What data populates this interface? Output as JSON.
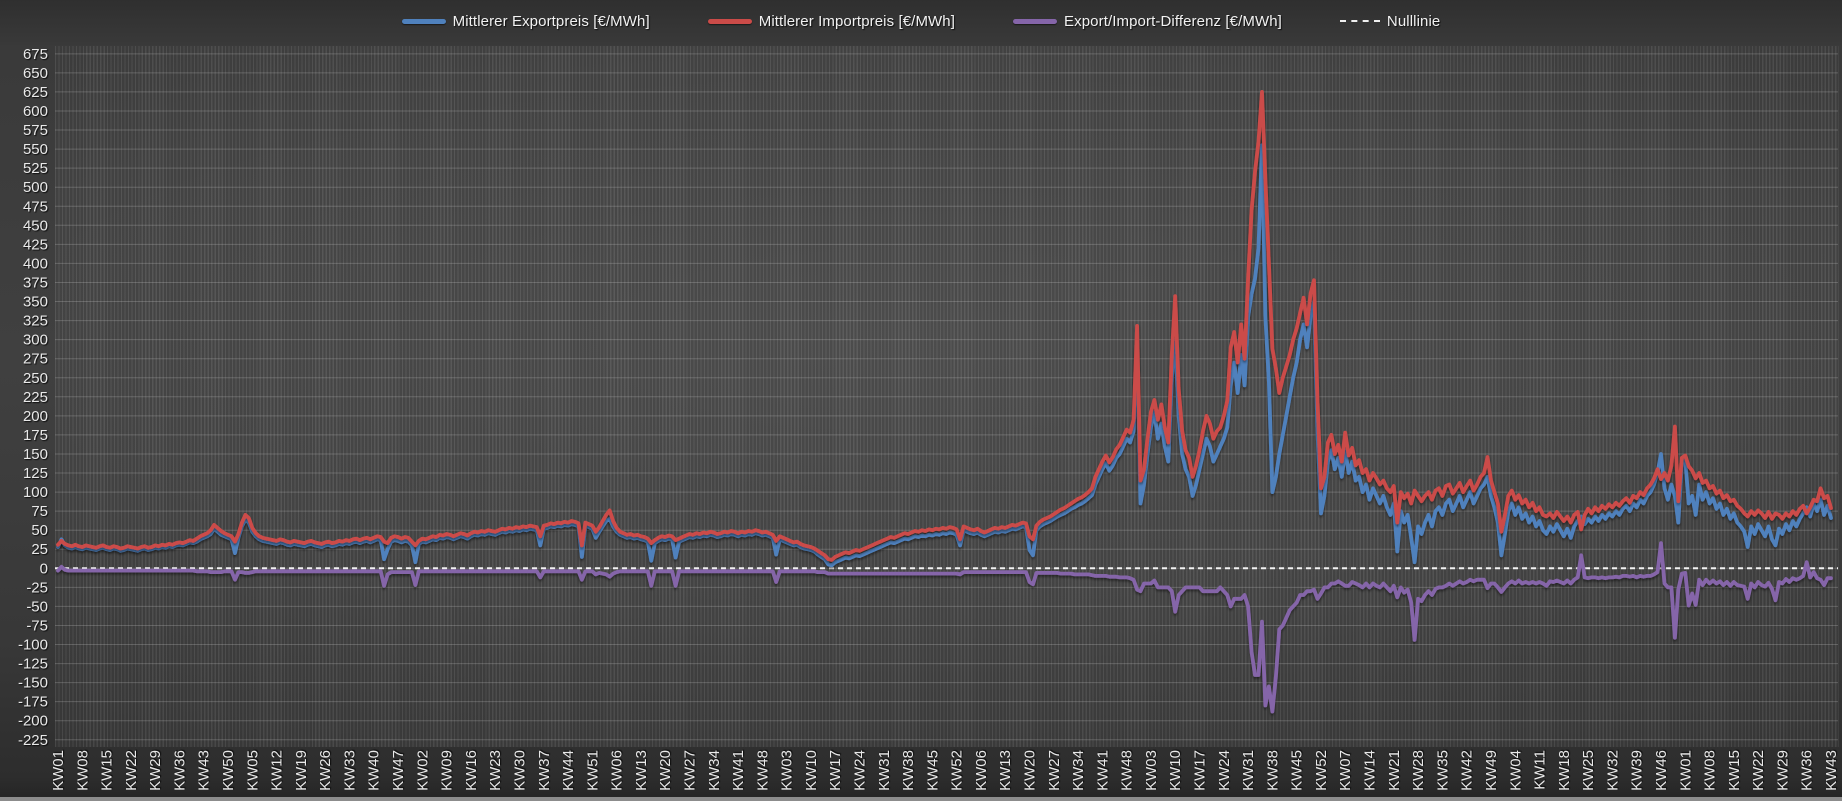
{
  "legend": {
    "null_label": "Nulllinie"
  },
  "chart_data": {
    "type": "line",
    "title": "",
    "xlabel": "",
    "ylabel": "",
    "y_axis": {
      "min": -225,
      "max": 675,
      "step": 25
    },
    "x_tick_every_n_points": 7,
    "n_points": 512,
    "grid": "on",
    "legend_position": "top",
    "x_tick_labels": [
      "KW01",
      "KW08",
      "KW15",
      "KW22",
      "KW29",
      "KW36",
      "KW43",
      "KW50",
      "KW05",
      "KW12",
      "KW19",
      "KW26",
      "KW33",
      "KW40",
      "KW47",
      "KW02",
      "KW09",
      "KW16",
      "KW23",
      "KW30",
      "KW37",
      "KW44",
      "KW51",
      "KW06",
      "KW13",
      "KW20",
      "KW27",
      "KW34",
      "KW41",
      "KW48",
      "KW03",
      "KW10",
      "KW17",
      "KW24",
      "KW31",
      "KW38",
      "KW45",
      "KW52",
      "KW06",
      "KW13",
      "KW20",
      "KW27",
      "KW34",
      "KW41",
      "KW48",
      "KW03",
      "KW10",
      "KW17",
      "KW24",
      "KW31",
      "KW38",
      "KW45",
      "KW52",
      "KW07",
      "KW14",
      "KW21",
      "KW28",
      "KW35",
      "KW42",
      "KW49",
      "KW04",
      "KW11",
      "KW18",
      "KW25",
      "KW32",
      "KW39",
      "KW46",
      "KW01",
      "KW08",
      "KW15",
      "KW22",
      "KW29",
      "KW36",
      "KW43"
    ],
    "series": [
      {
        "name": "Mittlerer Exportpreis [€/MWh]",
        "color": "#4f81bd",
        "values": [
          28,
          38,
          30,
          27,
          26,
          28,
          26,
          25,
          27,
          26,
          25,
          24,
          26,
          27,
          25,
          24,
          26,
          25,
          23,
          24,
          26,
          25,
          24,
          23,
          25,
          26,
          24,
          25,
          27,
          26,
          28,
          27,
          29,
          28,
          30,
          31,
          30,
          32,
          34,
          33,
          35,
          38,
          40,
          42,
          45,
          52,
          48,
          44,
          42,
          40,
          38,
          20,
          40,
          55,
          64,
          60,
          48,
          42,
          38,
          36,
          35,
          34,
          33,
          32,
          34,
          33,
          31,
          30,
          32,
          31,
          30,
          29,
          31,
          32,
          30,
          29,
          28,
          30,
          31,
          29,
          30,
          32,
          31,
          33,
          32,
          34,
          35,
          33,
          35,
          36,
          34,
          36,
          38,
          37,
          12,
          25,
          35,
          37,
          36,
          34,
          36,
          35,
          30,
          8,
          32,
          35,
          34,
          36,
          38,
          37,
          40,
          39,
          41,
          40,
          38,
          40,
          42,
          41,
          39,
          42,
          44,
          43,
          45,
          44,
          46,
          45,
          44,
          46,
          48,
          47,
          49,
          48,
          50,
          49,
          51,
          50,
          52,
          51,
          50,
          30,
          52,
          53,
          55,
          54,
          56,
          55,
          57,
          56,
          58,
          57,
          55,
          15,
          56,
          54,
          52,
          40,
          48,
          55,
          62,
          65,
          55,
          48,
          44,
          42,
          40,
          41,
          39,
          40,
          38,
          37,
          35,
          10,
          33,
          36,
          38,
          37,
          39,
          38,
          14,
          35,
          37,
          39,
          41,
          40,
          42,
          41,
          43,
          42,
          44,
          43,
          41,
          42,
          44,
          43,
          45,
          44,
          42,
          44,
          43,
          45,
          44,
          46,
          45,
          43,
          44,
          42,
          40,
          18,
          38,
          36,
          34,
          32,
          30,
          31,
          28,
          26,
          25,
          24,
          22,
          18,
          15,
          12,
          5,
          4,
          8,
          10,
          12,
          14,
          13,
          15,
          17,
          16,
          18,
          20,
          22,
          24,
          26,
          28,
          30,
          32,
          34,
          33,
          35,
          37,
          39,
          38,
          40,
          42,
          41,
          43,
          42,
          44,
          43,
          45,
          44,
          46,
          45,
          47,
          46,
          44,
          30,
          50,
          48,
          46,
          45,
          47,
          44,
          42,
          44,
          46,
          48,
          47,
          49,
          48,
          50,
          52,
          51,
          53,
          55,
          54,
          24,
          17,
          50,
          55,
          58,
          60,
          62,
          65,
          68,
          70,
          72,
          75,
          78,
          80,
          83,
          85,
          88,
          92,
          96,
          110,
          120,
          130,
          138,
          128,
          135,
          145,
          150,
          160,
          170,
          165,
          180,
          290,
          85,
          110,
          150,
          185,
          205,
          170,
          190,
          160,
          140,
          250,
          300,
          200,
          150,
          130,
          120,
          95,
          110,
          130,
          150,
          170,
          160,
          140,
          150,
          160,
          170,
          185,
          240,
          270,
          230,
          280,
          240,
          330,
          360,
          380,
          420,
          555,
          330,
          245,
          100,
          120,
          150,
          175,
          200,
          225,
          250,
          270,
          300,
          320,
          290,
          330,
          350,
          180,
          72,
          95,
          140,
          155,
          130,
          145,
          120,
          155,
          125,
          140,
          115,
          120,
          100,
          110,
          90,
          105,
          95,
          85,
          95,
          80,
          70,
          85,
          22,
          75,
          60,
          70,
          40,
          8,
          55,
          45,
          60,
          70,
          55,
          75,
          80,
          70,
          85,
          90,
          75,
          85,
          95,
          80,
          90,
          100,
          85,
          95,
          105,
          110,
          120,
          95,
          80,
          60,
          17,
          45,
          75,
          85,
          70,
          80,
          65,
          72,
          60,
          68,
          55,
          62,
          50,
          45,
          55,
          48,
          58,
          50,
          42,
          52,
          40,
          55,
          62,
          68,
          58,
          65,
          60,
          68,
          62,
          70,
          65,
          72,
          68,
          75,
          70,
          78,
          82,
          75,
          85,
          80,
          90,
          85,
          95,
          100,
          110,
          125,
          150,
          105,
          90,
          110,
          95,
          60,
          138,
          142,
          85,
          95,
          70,
          110,
          90,
          100,
          85,
          92,
          78,
          85,
          70,
          78,
          65,
          72,
          60,
          55,
          48,
          28,
          55,
          45,
          58,
          50,
          42,
          55,
          38,
          30,
          52,
          45,
          58,
          50,
          62,
          55,
          65,
          72,
          80,
          68,
          85,
          75,
          90,
          70,
          82,
          66
        ]
      },
      {
        "name": "Mittlerer Importpreis [€/MWh]",
        "color": "#cb4b48",
        "values": [
          31,
          36,
          32,
          30,
          29,
          31,
          29,
          28,
          30,
          29,
          28,
          27,
          29,
          30,
          28,
          27,
          29,
          28,
          26,
          27,
          29,
          28,
          27,
          26,
          28,
          29,
          27,
          28,
          30,
          29,
          31,
          30,
          32,
          31,
          33,
          34,
          33,
          35,
          37,
          36,
          39,
          42,
          44,
          46,
          50,
          57,
          53,
          49,
          46,
          44,
          42,
          35,
          45,
          60,
          70,
          66,
          53,
          46,
          42,
          40,
          39,
          38,
          37,
          36,
          38,
          37,
          35,
          34,
          36,
          35,
          34,
          33,
          35,
          36,
          34,
          33,
          32,
          34,
          35,
          33,
          34,
          36,
          35,
          37,
          36,
          38,
          39,
          37,
          39,
          40,
          38,
          40,
          42,
          41,
          35,
          33,
          40,
          42,
          41,
          39,
          41,
          40,
          35,
          30,
          36,
          39,
          38,
          40,
          42,
          41,
          44,
          43,
          45,
          44,
          42,
          44,
          46,
          45,
          43,
          46,
          48,
          47,
          49,
          48,
          50,
          49,
          48,
          50,
          52,
          51,
          53,
          52,
          54,
          53,
          55,
          54,
          56,
          55,
          54,
          42,
          56,
          57,
          59,
          58,
          60,
          59,
          61,
          60,
          62,
          61,
          59,
          30,
          60,
          58,
          56,
          48,
          54,
          62,
          70,
          76,
          62,
          53,
          48,
          46,
          44,
          45,
          43,
          44,
          42,
          41,
          39,
          33,
          37,
          40,
          42,
          41,
          43,
          42,
          37,
          39,
          41,
          43,
          45,
          44,
          46,
          45,
          47,
          46,
          48,
          47,
          45,
          46,
          48,
          47,
          49,
          48,
          46,
          48,
          47,
          49,
          48,
          50,
          49,
          47,
          48,
          46,
          44,
          36,
          42,
          40,
          38,
          36,
          34,
          35,
          32,
          30,
          29,
          28,
          26,
          23,
          20,
          17,
          12,
          11,
          15,
          17,
          19,
          21,
          20,
          22,
          24,
          23,
          25,
          27,
          29,
          31,
          33,
          35,
          37,
          39,
          41,
          40,
          42,
          44,
          46,
          45,
          47,
          49,
          48,
          50,
          49,
          51,
          50,
          52,
          51,
          53,
          52,
          54,
          53,
          51,
          38,
          55,
          53,
          51,
          50,
          52,
          49,
          47,
          49,
          51,
          53,
          52,
          54,
          53,
          55,
          57,
          56,
          58,
          60,
          59,
          42,
          38,
          56,
          61,
          64,
          66,
          68,
          71,
          74,
          77,
          79,
          82,
          85,
          88,
          91,
          93,
          96,
          100,
          105,
          120,
          130,
          140,
          148,
          139,
          146,
          156,
          162,
          172,
          182,
          178,
          195,
          318,
          115,
          130,
          170,
          205,
          221,
          195,
          215,
          185,
          165,
          280,
          357,
          235,
          180,
          155,
          145,
          120,
          135,
          155,
          180,
          200,
          190,
          170,
          180,
          185,
          200,
          220,
          290,
          310,
          270,
          320,
          275,
          380,
          470,
          520,
          560,
          625,
          510,
          400,
          288,
          262,
          230,
          250,
          265,
          280,
          300,
          315,
          335,
          355,
          320,
          360,
          378,
          220,
          105,
          120,
          165,
          175,
          150,
          162,
          140,
          178,
          148,
          158,
          135,
          142,
          125,
          130,
          115,
          125,
          118,
          110,
          115,
          105,
          100,
          108,
          60,
          100,
          92,
          98,
          85,
          102,
          95,
          88,
          95,
          100,
          90,
          102,
          105,
          95,
          108,
          110,
          98,
          105,
          112,
          100,
          108,
          115,
          102,
          110,
          120,
          125,
          146,
          115,
          100,
          85,
          48,
          70,
          95,
          102,
          90,
          96,
          85,
          90,
          80,
          86,
          75,
          80,
          70,
          68,
          72,
          66,
          74,
          68,
          62,
          68,
          60,
          70,
          74,
          51,
          70,
          78,
          72,
          80,
          75,
          82,
          78,
          84,
          80,
          86,
          82,
          88,
          92,
          86,
          95,
          92,
          100,
          96,
          105,
          110,
          118,
          130,
          117,
          125,
          115,
          135,
          186,
          88,
          145,
          148,
          134,
          128,
          118,
          125,
          112,
          115,
          105,
          108,
          98,
          102,
          92,
          96,
          88,
          90,
          82,
          78,
          72,
          68,
          75,
          70,
          76,
          72,
          66,
          74,
          65,
          72,
          70,
          65,
          72,
          68,
          75,
          70,
          78,
          82,
          72,
          80,
          90,
          88,
          105,
          92,
          95,
          79
        ]
      },
      {
        "name": "Export/Import-Differenz [€/MWh]",
        "color": "#8565a9",
        "derived": "series0_minus_series1"
      },
      {
        "name": "Nulllinie",
        "color": "#f2f2f2",
        "style": "dashed",
        "reference_value": 0
      }
    ]
  }
}
